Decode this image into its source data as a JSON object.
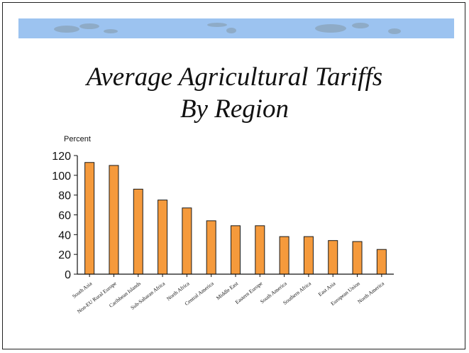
{
  "slide": {
    "title_line1": "Average Agricultural Tariffs",
    "title_line2": "By Region"
  },
  "colors": {
    "banner": "#9cc3f0",
    "bar_fill": "#f59a3c",
    "bar_stroke": "#1a1a1a"
  },
  "chart_data": {
    "type": "bar",
    "ylabel": "Percent",
    "ylim": [
      0,
      120
    ],
    "yticks": [
      0,
      20,
      40,
      60,
      80,
      100,
      120
    ],
    "grid": false,
    "categories": [
      "South Asia",
      "Non-EU Rural Europe",
      "Caribbean Islands",
      "Sub-Saharan Africa",
      "North Africa",
      "Central America",
      "Middle East",
      "Eastern Europe",
      "South America",
      "Southern Africa",
      "East Asia",
      "European Union",
      "North America"
    ],
    "values": [
      113,
      110,
      86,
      75,
      67,
      54,
      49,
      49,
      38,
      38,
      34,
      33,
      25
    ]
  }
}
